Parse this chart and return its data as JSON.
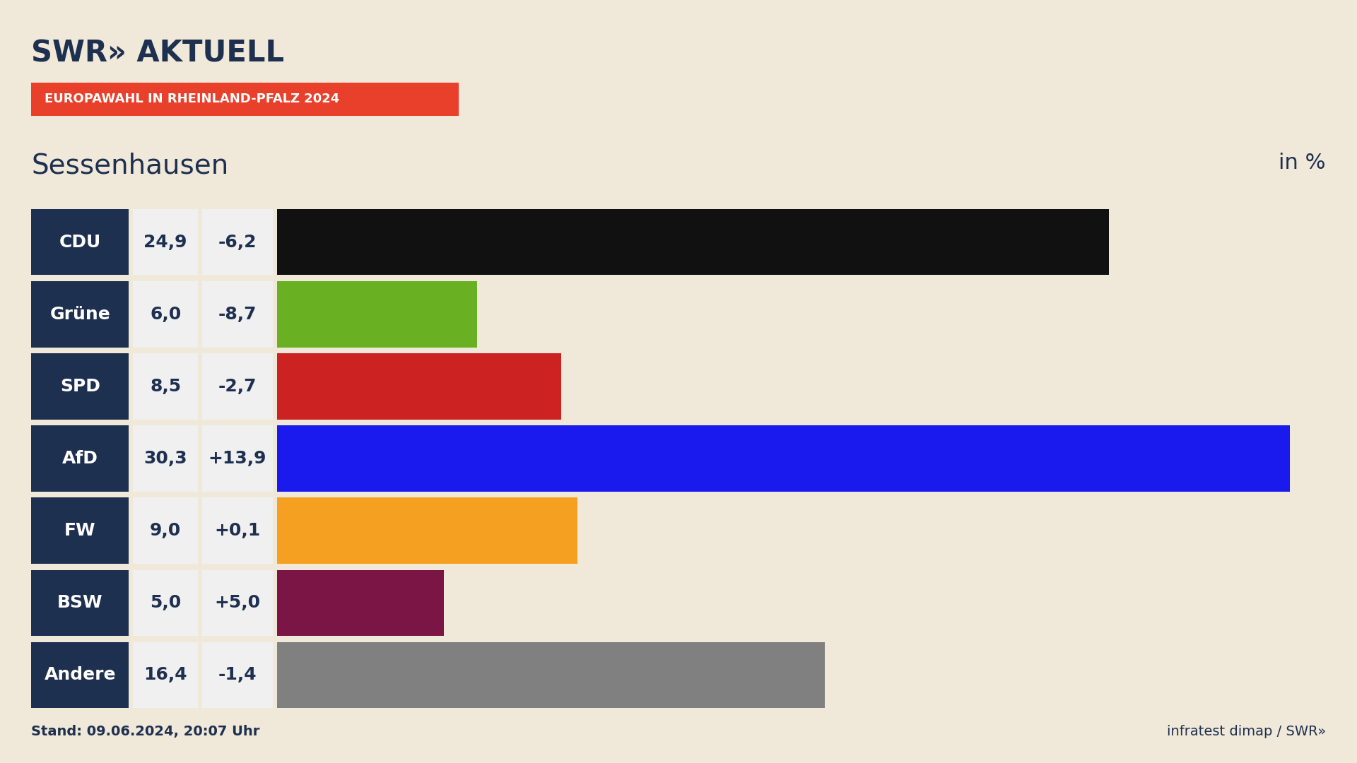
{
  "title": "Sessenhausen",
  "subtitle": "EUROPAWAHL IN RHEINLAND-PFALZ 2024",
  "in_percent_label": "in %",
  "stand_text": "Stand: 09.06.2024, 20:07 Uhr",
  "source_text": "infratest dimap / SWR»",
  "swr_logo": "SWR» AKTUELL",
  "background_color": "#f0e8d8",
  "parties": [
    "CDU",
    "Grüne",
    "SPD",
    "AfD",
    "FW",
    "BSW",
    "Andere"
  ],
  "values": [
    24.9,
    6.0,
    8.5,
    30.3,
    9.0,
    5.0,
    16.4
  ],
  "changes": [
    "-6,2",
    "-8,7",
    "-2,7",
    "+13,9",
    "+0,1",
    "+5,0",
    "-1,4"
  ],
  "bar_colors": [
    "#111111",
    "#6ab023",
    "#cc2222",
    "#1a1aee",
    "#f5a020",
    "#7a1545",
    "#808080"
  ],
  "label_bg_color": "#1e3050",
  "label_text_color": "#ffffff",
  "value_bg_color": "#f0f0f0",
  "value_text_color": "#1e3050",
  "change_bg_color": "#f0f0f0",
  "change_text_color": "#1e3050",
  "max_value": 31.5,
  "subtitle_bg_color": "#e8402a",
  "swr_color": "#1e3050",
  "footer_color": "#1e3050"
}
